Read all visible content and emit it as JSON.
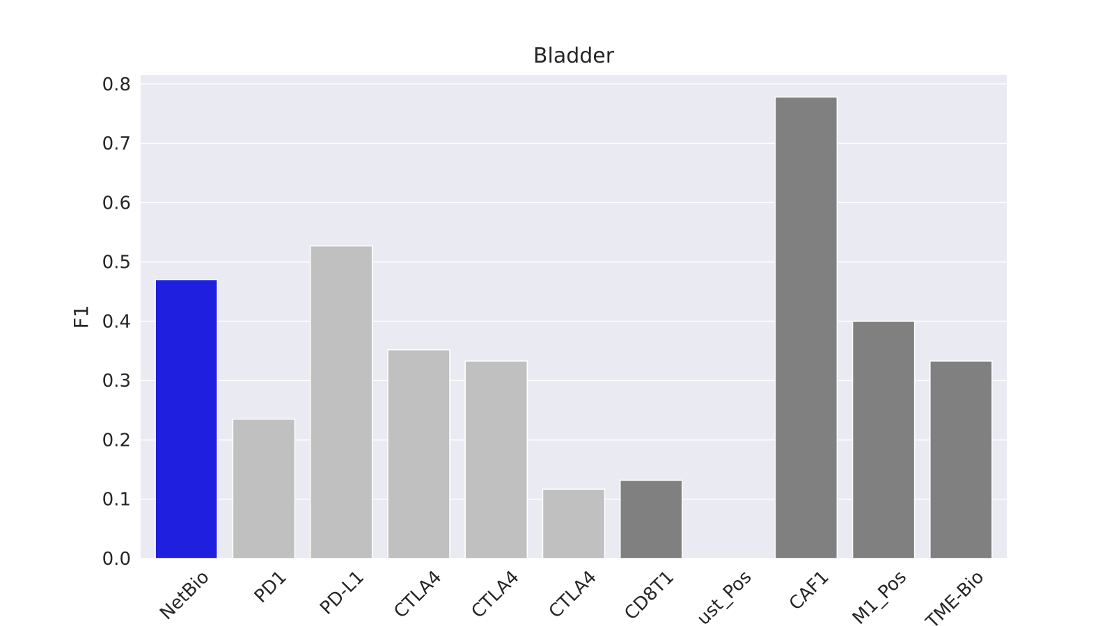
{
  "chart_data": {
    "type": "bar",
    "title": "Bladder",
    "xlabel": "",
    "ylabel": "F1",
    "ylim": [
      0,
      0.815
    ],
    "yticks": [
      "0.0",
      "0.1",
      "0.2",
      "0.3",
      "0.4",
      "0.5",
      "0.6",
      "0.7",
      "0.8"
    ],
    "grid": true,
    "categories": [
      "NetBio",
      "PD1",
      "PD-L1",
      "CTLA4",
      "CTLA4",
      "CTLA4",
      "CD8T1",
      "ust_Pos",
      "CAF1",
      "M1_Pos",
      "TME-Bio"
    ],
    "values": [
      0.47,
      0.235,
      0.527,
      0.352,
      0.333,
      0.117,
      0.132,
      0.0,
      0.778,
      0.4,
      0.333
    ],
    "bar_colors": [
      "#1f1fe0",
      "#c0c0c0",
      "#c0c0c0",
      "#c0c0c0",
      "#c0c0c0",
      "#c0c0c0",
      "#808080",
      "#808080",
      "#808080",
      "#808080",
      "#808080"
    ]
  },
  "colors": {
    "plot_background": "#eaeaf2",
    "grid": "#ffffff",
    "text": "#262626"
  }
}
